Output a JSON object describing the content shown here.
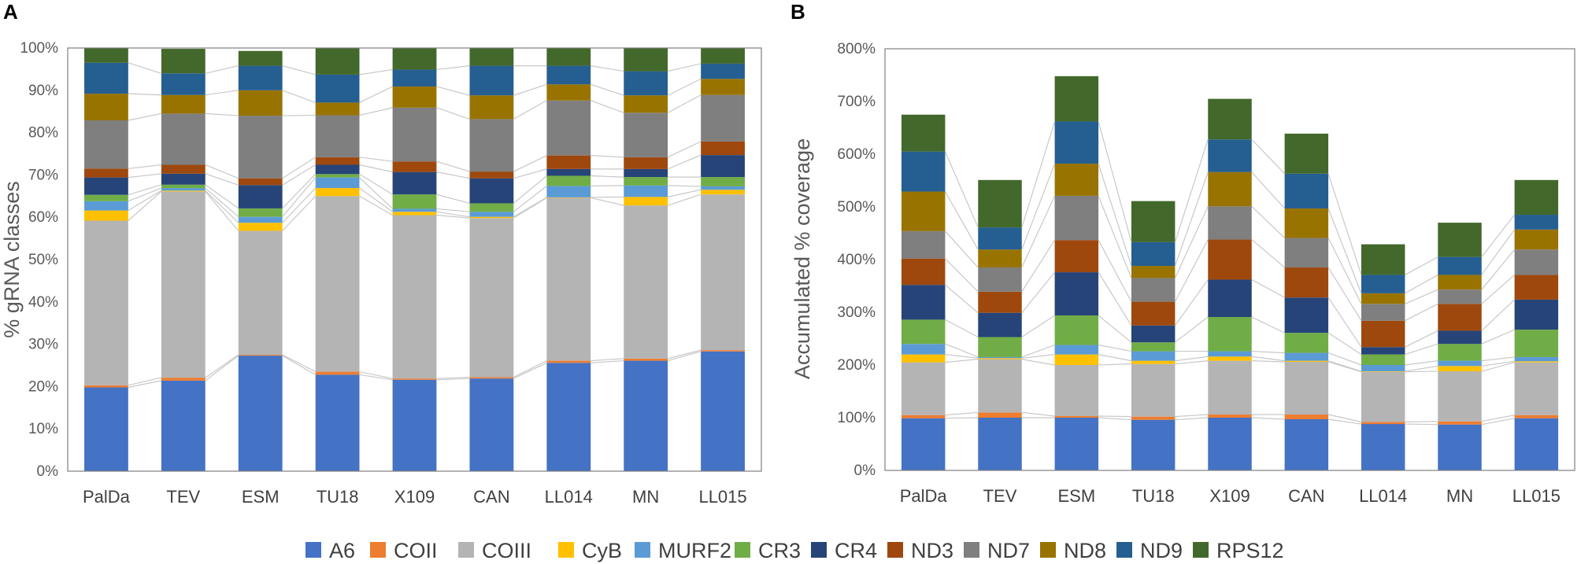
{
  "legend": [
    {
      "name": "A6",
      "color": "#4472C4"
    },
    {
      "name": "COII",
      "color": "#ED7D31"
    },
    {
      "name": "COIII",
      "color": "#B4B4B4"
    },
    {
      "name": "CyB",
      "color": "#FFC000"
    },
    {
      "name": "MURF2",
      "color": "#5B9BD5"
    },
    {
      "name": "CR3",
      "color": "#70AD47"
    },
    {
      "name": "CR4",
      "color": "#264478"
    },
    {
      "name": "ND3",
      "color": "#9E480E"
    },
    {
      "name": "ND7",
      "color": "#7F7F7F"
    },
    {
      "name": "ND8",
      "color": "#997300"
    },
    {
      "name": "ND9",
      "color": "#255E91"
    },
    {
      "name": "RPS12",
      "color": "#43682B"
    }
  ],
  "chart_data": [
    {
      "panel": "A",
      "type": "bar",
      "stacked": true,
      "ylabel": "% gRNA classes",
      "xlabel": "",
      "ylim": [
        0,
        100
      ],
      "ytick_step": 10,
      "ytick_suffix": "%",
      "categories": [
        "PalDa",
        "TEV",
        "ESM",
        "TU18",
        "X109",
        "CAN",
        "LL014",
        "MN",
        "LL015"
      ],
      "series": [
        {
          "name": "A6",
          "values": [
            19.8,
            21.4,
            27.3,
            22.8,
            21.6,
            21.9,
            25.6,
            26.1,
            28.3
          ]
        },
        {
          "name": "COII",
          "values": [
            0.5,
            0.7,
            0.2,
            0.7,
            0.3,
            0.3,
            0.5,
            0.5,
            0.3
          ]
        },
        {
          "name": "COIII",
          "values": [
            38.9,
            44.0,
            29.3,
            41.5,
            38.6,
            37.6,
            38.5,
            36.2,
            36.8
          ]
        },
        {
          "name": "CyB",
          "values": [
            2.4,
            0.2,
            1.9,
            1.9,
            0.8,
            0.3,
            0.1,
            2.0,
            1.1
          ]
        },
        {
          "name": "MURF2",
          "values": [
            2.2,
            0.6,
            1.4,
            2.5,
            0.7,
            1.2,
            2.7,
            2.7,
            0.8
          ]
        },
        {
          "name": "CR3",
          "values": [
            1.5,
            0.8,
            2.0,
            0.8,
            3.4,
            2.0,
            2.4,
            2.0,
            2.2
          ]
        },
        {
          "name": "CR4",
          "values": [
            4.1,
            2.6,
            5.5,
            2.2,
            5.3,
            5.9,
            1.6,
            1.9,
            5.2
          ]
        },
        {
          "name": "ND3",
          "values": [
            2.1,
            2.1,
            1.6,
            1.8,
            2.5,
            1.6,
            3.2,
            2.8,
            3.2
          ]
        },
        {
          "name": "ND7",
          "values": [
            11.4,
            12.1,
            14.8,
            9.9,
            12.7,
            12.4,
            13.0,
            10.5,
            11.0
          ]
        },
        {
          "name": "ND8",
          "values": [
            6.3,
            4.4,
            6.0,
            3.0,
            5.0,
            5.6,
            3.8,
            4.1,
            3.8
          ]
        },
        {
          "name": "ND9",
          "values": [
            7.3,
            5.1,
            5.8,
            6.6,
            4.0,
            7.0,
            4.4,
            5.7,
            3.6
          ]
        },
        {
          "name": "RPS12",
          "values": [
            3.5,
            5.8,
            3.5,
            6.3,
            5.1,
            4.2,
            4.2,
            5.5,
            3.7
          ]
        }
      ]
    },
    {
      "panel": "B",
      "type": "bar",
      "stacked": true,
      "ylabel": "Accumulated % coverage",
      "xlabel": "",
      "ylim": [
        0,
        800
      ],
      "ytick_step": 100,
      "ytick_suffix": "%",
      "categories": [
        "PalDa",
        "TEV",
        "ESM",
        "TU18",
        "X109",
        "CAN",
        "LL014",
        "MN",
        "LL015"
      ],
      "series": [
        {
          "name": "A6",
          "values": [
            99,
            100,
            100,
            96,
            100,
            97,
            88,
            87,
            99
          ]
        },
        {
          "name": "COII",
          "values": [
            6,
            10,
            3,
            6,
            6,
            9,
            4,
            6,
            6
          ]
        },
        {
          "name": "COIII",
          "values": [
            100,
            101,
            97,
            100,
            102,
            100,
            95,
            95,
            100
          ]
        },
        {
          "name": "CyB",
          "values": [
            15,
            2,
            20,
            6,
            8,
            2,
            1,
            10,
            2
          ]
        },
        {
          "name": "MURF2",
          "values": [
            20,
            2,
            18,
            18,
            10,
            15,
            12,
            10,
            8
          ]
        },
        {
          "name": "CR3",
          "values": [
            46,
            38,
            56,
            17,
            65,
            38,
            20,
            32,
            52
          ]
        },
        {
          "name": "CR4",
          "values": [
            66,
            46,
            82,
            32,
            71,
            67,
            14,
            25,
            57
          ]
        },
        {
          "name": "ND3",
          "values": [
            50,
            40,
            61,
            45,
            76,
            57,
            50,
            51,
            47
          ]
        },
        {
          "name": "ND7",
          "values": [
            52,
            46,
            84,
            45,
            63,
            56,
            32,
            27,
            48
          ]
        },
        {
          "name": "ND8",
          "values": [
            75,
            34,
            61,
            23,
            65,
            56,
            20,
            28,
            38
          ]
        },
        {
          "name": "ND9",
          "values": [
            76,
            42,
            80,
            45,
            62,
            66,
            35,
            34,
            28
          ]
        },
        {
          "name": "RPS12",
          "values": [
            70,
            90,
            86,
            78,
            77,
            76,
            58,
            65,
            66
          ]
        }
      ]
    }
  ]
}
